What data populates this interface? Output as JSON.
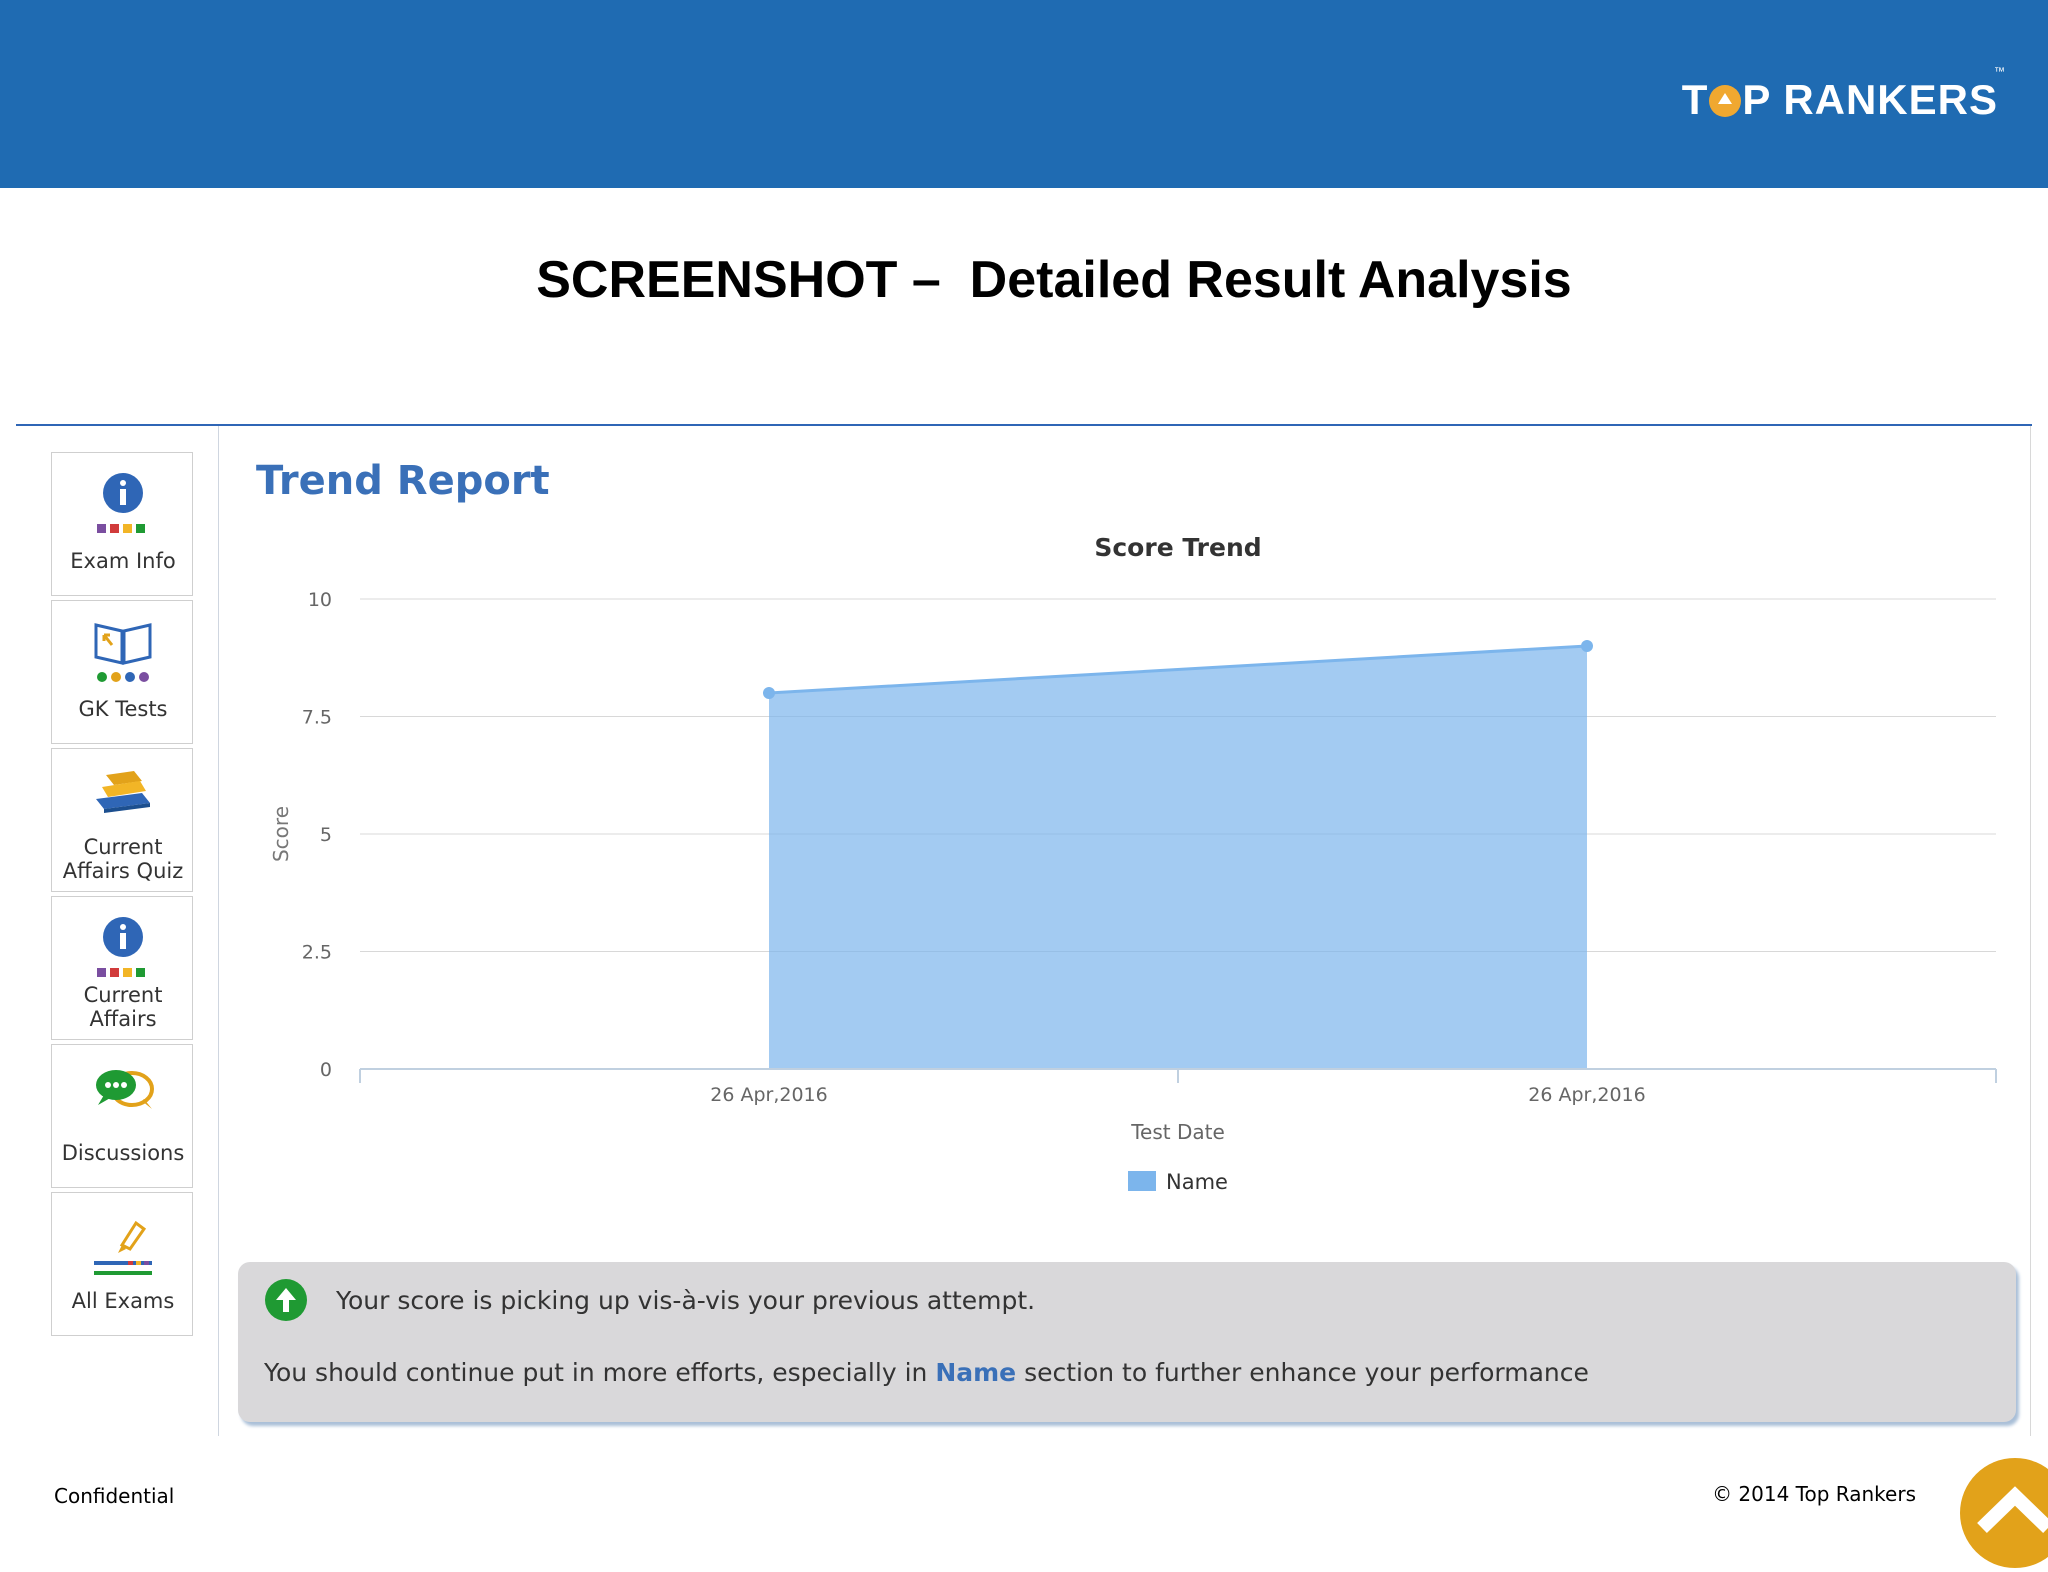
{
  "brand": {
    "logo_text_pre": "T",
    "logo_text_post": "P RANKERS",
    "logo_tm": "™",
    "topbar_color": "#1f6bb2"
  },
  "slide": {
    "title": "SCREENSHOT –  Detailed Result Analysis"
  },
  "sidebar": {
    "items": [
      {
        "label_lines": [
          "Exam Info"
        ],
        "icon": "info-icon"
      },
      {
        "label_lines": [
          "GK Tests"
        ],
        "icon": "book-icon"
      },
      {
        "label_lines": [
          "Current",
          "Affairs Quiz"
        ],
        "icon": "books-stack-icon"
      },
      {
        "label_lines": [
          "Current",
          "Affairs"
        ],
        "icon": "info-icon"
      },
      {
        "label_lines": [
          "Discussions"
        ],
        "icon": "chat-bubbles-icon"
      },
      {
        "label_lines": [
          "All Exams"
        ],
        "icon": "pen-icon"
      }
    ]
  },
  "report": {
    "title": "Trend Report"
  },
  "chart_data": {
    "type": "area",
    "title": "Score Trend",
    "xlabel": "Test Date",
    "ylabel": "Score",
    "categories": [
      "26 Apr,2016",
      "26 Apr,2016"
    ],
    "series": [
      {
        "name": "Name",
        "values": [
          8,
          9
        ],
        "color": "#7cb5ec"
      }
    ],
    "ylim": [
      0,
      10
    ],
    "yticks": [
      "0",
      "2.5",
      "5",
      "7.5",
      "10"
    ],
    "grid": true,
    "legend_position": "bottom-center"
  },
  "note": {
    "line1": "Your score is picking up vis-à-vis your previous attempt.",
    "line2_pre": "You should continue put in more efforts, especially in ",
    "line2_highlight": "Name",
    "line2_post": " section to further enhance your performance"
  },
  "footer": {
    "left": "Confidential",
    "right": "© 2014 Top Rankers"
  },
  "colors": {
    "accent": "#3a70b8",
    "scroll_button": "#e2a21a",
    "trend_up": "#1f9a33"
  }
}
